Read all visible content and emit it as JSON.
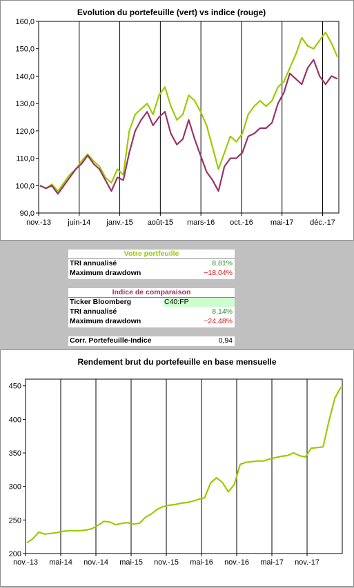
{
  "colors": {
    "portfolio": "#99cc00",
    "index": "#993366",
    "grid": "#000000",
    "hdr_portfolio": "#99cc00",
    "hdr_index": "#993366",
    "positive": "#2e8b2e",
    "negative": "#dd1111",
    "ticker_bg": "#ccffcc"
  },
  "portfolio_table": {
    "title": "Votre portfeuille",
    "rows": [
      {
        "label": "TRI annualisé",
        "value": "8,81%"
      },
      {
        "label": "Maximum drawdown",
        "value": "−18,04%"
      }
    ]
  },
  "index_table": {
    "title": "Indice de comparaison",
    "rows": [
      {
        "label": "Ticker Bloomberg",
        "value": "C40:FP"
      },
      {
        "label": "TRI annualisé",
        "value": "8,14%"
      },
      {
        "label": "Maximum drawdown",
        "value": "−24,48%"
      }
    ]
  },
  "corr": {
    "label": "Corr. Portefeuille-Indice",
    "value": "0,94"
  },
  "chart_data": [
    {
      "type": "line",
      "title": "Evolution du portefeuille (vert) vs indice (rouge)",
      "xlabel": "",
      "ylabel": "",
      "ylim": [
        90,
        160
      ],
      "yticks": [
        "90,0",
        "100,0",
        "110,0",
        "120,0",
        "130,0",
        "140,0",
        "150,0",
        "160,0"
      ],
      "xticks": [
        "nov.-13",
        "juin-14",
        "janv.-15",
        "août-15",
        "mars-16",
        "oct.-16",
        "mai-17",
        "déc.-17"
      ],
      "grid": "vertical",
      "series": [
        {
          "color": "#99cc00",
          "x": [
            0,
            1,
            2,
            3,
            4,
            5,
            6,
            7,
            8,
            9,
            10,
            11,
            12,
            13,
            14,
            15,
            16,
            17,
            18,
            19,
            20,
            21,
            22,
            23,
            24,
            25,
            26,
            27,
            28,
            29,
            30,
            31,
            32,
            33,
            34,
            35,
            36,
            37,
            38,
            39,
            40,
            41,
            42,
            43,
            44,
            45,
            46,
            47,
            48,
            49,
            50
          ],
          "values": [
            100,
            99,
            100.5,
            98,
            101,
            104,
            106,
            109,
            111.5,
            109,
            107,
            103,
            101,
            106,
            104,
            120,
            126,
            128,
            130,
            126,
            133,
            136,
            129,
            124,
            126,
            133,
            131,
            127,
            122,
            114,
            106,
            112,
            118,
            116,
            119,
            126,
            129,
            131,
            129,
            131,
            136,
            138,
            143,
            148,
            154,
            151,
            150,
            153,
            156,
            152,
            147
          ]
        },
        {
          "color": "#993366",
          "x": [
            0,
            1,
            2,
            3,
            4,
            5,
            6,
            7,
            8,
            9,
            10,
            11,
            12,
            13,
            14,
            15,
            16,
            17,
            18,
            19,
            20,
            21,
            22,
            23,
            24,
            25,
            26,
            27,
            28,
            29,
            30,
            31,
            32,
            33,
            34,
            35,
            36,
            37,
            38,
            39,
            40,
            41,
            42,
            43,
            44,
            45,
            46,
            47,
            48,
            49,
            50
          ],
          "values": [
            100,
            99,
            100,
            97,
            100,
            103,
            106,
            108,
            111,
            108,
            106,
            102,
            98,
            103,
            102,
            112,
            120,
            124,
            127,
            122,
            125,
            127,
            119,
            115,
            117,
            124,
            117,
            111,
            105,
            102,
            98,
            107,
            110,
            110,
            112,
            118,
            119,
            121,
            121,
            123,
            130,
            134,
            141,
            139,
            137,
            143,
            146,
            140,
            137,
            140,
            139
          ]
        }
      ]
    },
    {
      "type": "line",
      "title": "Rendement brut du portefeuille en base mensuelle",
      "xlabel": "",
      "ylabel": "",
      "ylim": [
        200,
        460
      ],
      "yticks": [
        "200",
        "250",
        "300",
        "350",
        "400",
        "450"
      ],
      "xticks": [
        "nov.-13",
        "mai-14",
        "nov.-14",
        "mai-15",
        "nov.-15",
        "mai-16",
        "nov.-16",
        "mai-17",
        "nov.-17"
      ],
      "grid": "vertical",
      "series": [
        {
          "color": "#99cc00",
          "x": [
            0,
            1,
            2,
            3,
            4,
            5,
            6,
            7,
            8,
            9,
            10,
            11,
            12,
            13,
            14,
            15,
            16,
            17,
            18,
            19,
            20,
            21,
            22,
            23,
            24,
            25,
            26,
            27,
            28,
            29,
            30,
            31,
            32,
            33,
            34,
            35,
            36,
            37,
            38,
            39,
            40,
            41,
            42,
            43,
            44,
            45,
            46,
            47,
            48,
            49,
            50,
            51,
            52,
            53
          ],
          "values": [
            216,
            222,
            232,
            229,
            230,
            231,
            233,
            234,
            234,
            234,
            235,
            237,
            242,
            248,
            247,
            243,
            245,
            246,
            244,
            245,
            254,
            259,
            266,
            270,
            272,
            273,
            275,
            276,
            278,
            281,
            283,
            305,
            313,
            306,
            292,
            303,
            333,
            336,
            337,
            338,
            338,
            341,
            343,
            345,
            346,
            350,
            346,
            344,
            357,
            358,
            359,
            398,
            432,
            448
          ]
        }
      ]
    }
  ]
}
